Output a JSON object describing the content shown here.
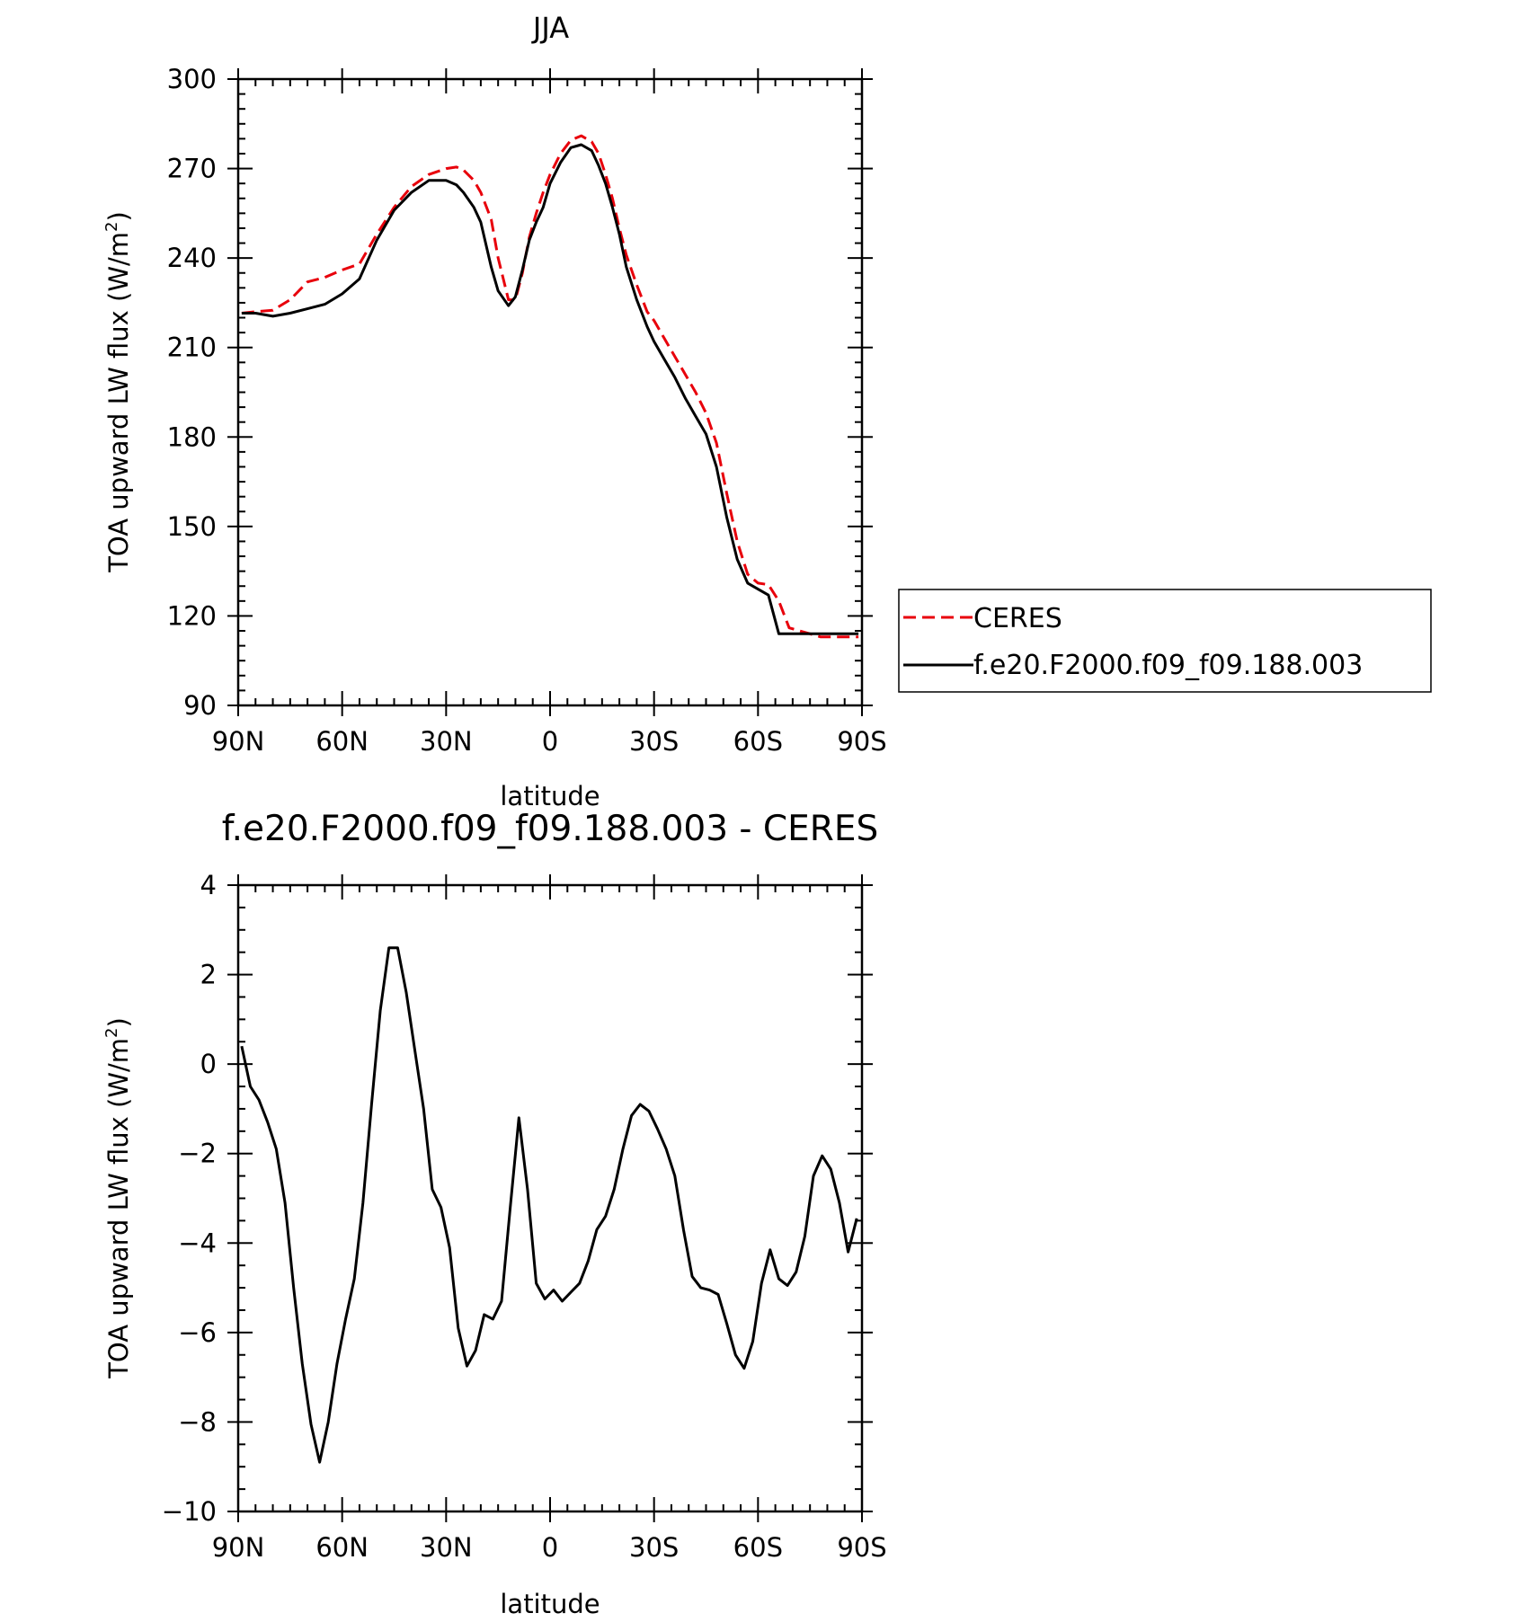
{
  "chart_data": [
    {
      "type": "line",
      "title": "JJA",
      "xlabel": "latitude",
      "ylabel_main": "TOA upward LW flux (W/m",
      "ylabel_sup": "2",
      "ylabel_close": ")",
      "xlim": [
        90,
        -90
      ],
      "ylim": [
        90,
        300
      ],
      "x_ticks": [
        {
          "value": 90,
          "label": "90N"
        },
        {
          "value": 60,
          "label": "60N"
        },
        {
          "value": 30,
          "label": "30N"
        },
        {
          "value": 0,
          "label": "0"
        },
        {
          "value": -30,
          "label": "30S"
        },
        {
          "value": -60,
          "label": "60S"
        },
        {
          "value": -90,
          "label": "90S"
        }
      ],
      "y_ticks": [
        {
          "value": 90,
          "label": "90"
        },
        {
          "value": 120,
          "label": "120"
        },
        {
          "value": 150,
          "label": "150"
        },
        {
          "value": 180,
          "label": "180"
        },
        {
          "value": 210,
          "label": "210"
        },
        {
          "value": 240,
          "label": "240"
        },
        {
          "value": 270,
          "label": "270"
        },
        {
          "value": 300,
          "label": "300"
        }
      ],
      "legend": {
        "placement": "right",
        "entries": [
          {
            "name": "CERES",
            "color": "#e8000b",
            "dash": true
          },
          {
            "name": "f.e20.F2000.f09_f09.188.003",
            "color": "#000000",
            "dash": false
          }
        ]
      },
      "series": [
        {
          "name": "CERES",
          "color": "#e8000b",
          "dash": true,
          "x": [
            89,
            85,
            80,
            75,
            70,
            65,
            60,
            55,
            50,
            45,
            40,
            35,
            30,
            27,
            25,
            22,
            20,
            17,
            15,
            12,
            10,
            8,
            6,
            4,
            2,
            0,
            -3,
            -6,
            -9,
            -12,
            -14,
            -16,
            -18,
            -20,
            -22,
            -25,
            -28,
            -30,
            -33,
            -36,
            -39,
            -42,
            -45,
            -48,
            -51,
            -54,
            -57,
            -60,
            -63,
            -66,
            -69,
            -72,
            -75,
            -78,
            -81,
            -84,
            -87,
            -89
          ],
          "y": [
            221.5,
            222,
            222.5,
            226,
            232,
            233.5,
            236,
            238,
            248,
            257,
            264,
            268,
            270,
            270.5,
            269.5,
            266,
            262,
            253,
            240,
            226,
            226,
            235,
            247,
            255,
            262,
            268,
            275,
            279.5,
            281,
            279,
            275,
            268,
            260,
            250,
            241,
            231,
            222,
            219,
            213,
            207,
            201,
            195,
            188,
            178,
            161,
            145,
            134,
            131,
            130.5,
            125,
            116,
            115,
            114,
            113,
            113,
            113,
            113,
            113
          ]
        },
        {
          "name": "f.e20.F2000.f09_f09.188.003",
          "color": "#000000",
          "dash": false,
          "x": [
            89,
            85,
            80,
            75,
            70,
            65,
            60,
            55,
            50,
            45,
            40,
            35,
            30,
            27,
            25,
            22,
            20,
            17,
            15,
            12,
            10,
            8,
            6,
            4,
            2,
            0,
            -3,
            -6,
            -9,
            -12,
            -14,
            -16,
            -18,
            -20,
            -22,
            -25,
            -28,
            -30,
            -33,
            -36,
            -39,
            -42,
            -45,
            -48,
            -51,
            -54,
            -57,
            -60,
            -63,
            -66,
            -69,
            -72,
            -75,
            -78,
            -81,
            -84,
            -87,
            -89
          ],
          "y": [
            221.5,
            221.5,
            220.5,
            221.5,
            223,
            224.5,
            228,
            233,
            246,
            256,
            262,
            266,
            266,
            264.5,
            262,
            257,
            252,
            237,
            229,
            224,
            227,
            236,
            246,
            252,
            257,
            265,
            272,
            277,
            278,
            276,
            271,
            265,
            257,
            248,
            237,
            226,
            217,
            212,
            206,
            200,
            193,
            187,
            181,
            170,
            153,
            139,
            131,
            129,
            127,
            114,
            114,
            114,
            114,
            114,
            114,
            114,
            114,
            114
          ]
        }
      ]
    },
    {
      "type": "line",
      "title": "f.e20.F2000.f09_f09.188.003 - CERES",
      "xlabel": "latitude",
      "ylabel_main": "TOA upward LW flux (W/m",
      "ylabel_sup": "2",
      "ylabel_close": ")",
      "xlim": [
        90,
        -90
      ],
      "ylim": [
        -10,
        4
      ],
      "x_ticks": [
        {
          "value": 90,
          "label": "90N"
        },
        {
          "value": 60,
          "label": "60N"
        },
        {
          "value": 30,
          "label": "30N"
        },
        {
          "value": 0,
          "label": "0"
        },
        {
          "value": -30,
          "label": "30S"
        },
        {
          "value": -60,
          "label": "60S"
        },
        {
          "value": -90,
          "label": "90S"
        }
      ],
      "y_ticks": [
        {
          "value": -10,
          "label": "−10"
        },
        {
          "value": -8,
          "label": "−8"
        },
        {
          "value": -6,
          "label": "−6"
        },
        {
          "value": -4,
          "label": "−4"
        },
        {
          "value": -2,
          "label": "−2"
        },
        {
          "value": 0,
          "label": "0"
        },
        {
          "value": 2,
          "label": "2"
        },
        {
          "value": 4,
          "label": "4"
        }
      ],
      "series": [
        {
          "name": "f.e20.F2000.f09_f09.188.003 - CERES",
          "color": "#000000",
          "dash": false,
          "x": [
            89,
            86.5,
            84,
            81.5,
            79,
            76.5,
            74,
            71.5,
            69,
            66.5,
            64,
            61.5,
            59,
            56.5,
            54,
            51.5,
            49,
            46.5,
            44,
            41.5,
            39,
            36.5,
            34,
            31.5,
            29,
            26.5,
            24,
            21.5,
            19,
            16.5,
            14,
            11.5,
            9,
            6.5,
            4,
            1.5,
            -1,
            -3.5,
            -6,
            -8.5,
            -11,
            -13.5,
            -16,
            -18.5,
            -21,
            -23.5,
            -26,
            -28.5,
            -31,
            -33.5,
            -36,
            -38.5,
            -41,
            -43.5,
            -46,
            -48.5,
            -51,
            -53.5,
            -56,
            -58.5,
            -61,
            -63.5,
            -66,
            -68.5,
            -71,
            -73.5,
            -76,
            -78.5,
            -81,
            -83.5,
            -86,
            -88.5
          ],
          "y": [
            0.4,
            -0.5,
            -0.8,
            -1.3,
            -1.9,
            -3.1,
            -5,
            -6.7,
            -8.05,
            -8.9,
            -8,
            -6.7,
            -5.7,
            -4.8,
            -3.1,
            -0.9,
            1.2,
            2.6,
            2.6,
            1.6,
            0.3,
            -1,
            -2.8,
            -3.2,
            -4.1,
            -5.9,
            -6.75,
            -6.4,
            -5.6,
            -5.7,
            -5.3,
            -3.2,
            -1.2,
            -2.8,
            -4.9,
            -5.25,
            -5.05,
            -5.3,
            -5.1,
            -4.9,
            -4.4,
            -3.7,
            -3.4,
            -2.8,
            -1.9,
            -1.15,
            -0.9,
            -1.05,
            -1.45,
            -1.9,
            -2.5,
            -3.7,
            -4.75,
            -5,
            -5.05,
            -5.15,
            -5.8,
            -6.5,
            -6.8,
            -6.2,
            -4.9,
            -4.15,
            -4.8,
            -4.95,
            -4.65,
            -3.85,
            -2.5,
            -2.05,
            -2.35,
            -3.1,
            -4.2,
            -3.45
          ]
        }
      ]
    }
  ]
}
